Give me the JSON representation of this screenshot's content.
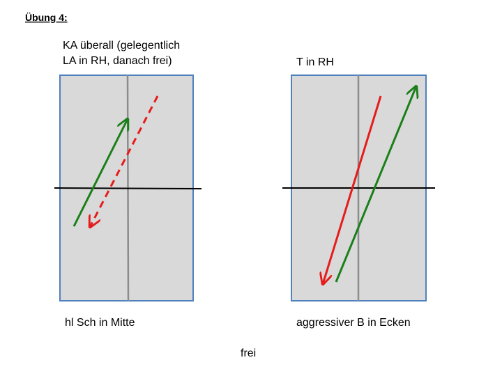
{
  "title": "Übung 4:",
  "panels": [
    {
      "caption_lines": [
        "KA überall (gelegentlich",
        "LA in RH, danach frei)"
      ],
      "footer": "hl Sch in Mitte"
    },
    {
      "caption_lines": [
        "T in RH"
      ],
      "footer": "aggressiver B in Ecken"
    }
  ],
  "note": "frei"
}
